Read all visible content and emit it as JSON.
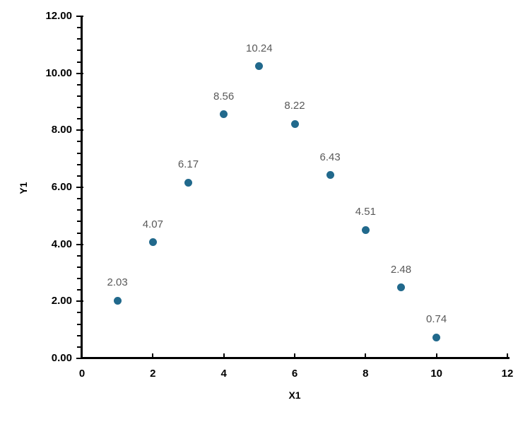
{
  "chart_data": {
    "type": "scatter",
    "title": "",
    "xlabel": "X1",
    "ylabel": "Y1",
    "xlim": [
      0,
      12
    ],
    "ylim": [
      0,
      12
    ],
    "grid": false,
    "legend": "none",
    "axis_color": "#000000",
    "data_label_color": "#595959",
    "y_minor_step": 0.4,
    "x_ticks": [
      {
        "value": 0,
        "label": "0"
      },
      {
        "value": 2,
        "label": "2"
      },
      {
        "value": 4,
        "label": "4"
      },
      {
        "value": 6,
        "label": "6"
      },
      {
        "value": 8,
        "label": "8"
      },
      {
        "value": 10,
        "label": "10"
      },
      {
        "value": 12,
        "label": "12"
      }
    ],
    "y_ticks": [
      {
        "value": 0,
        "label": "0.00"
      },
      {
        "value": 2,
        "label": "2.00"
      },
      {
        "value": 4,
        "label": "4.00"
      },
      {
        "value": 6,
        "label": "6.00"
      },
      {
        "value": 8,
        "label": "8.00"
      },
      {
        "value": 10,
        "label": "10.00"
      },
      {
        "value": 12,
        "label": "12.00"
      }
    ],
    "series": [
      {
        "name": "Y1",
        "marker_color": "#21698C",
        "points": [
          {
            "x": 1,
            "y": 2.03,
            "label": "2.03"
          },
          {
            "x": 2,
            "y": 4.07,
            "label": "4.07"
          },
          {
            "x": 3,
            "y": 6.17,
            "label": "6.17"
          },
          {
            "x": 4,
            "y": 8.56,
            "label": "8.56"
          },
          {
            "x": 5,
            "y": 10.24,
            "label": "10.24"
          },
          {
            "x": 6,
            "y": 8.22,
            "label": "8.22"
          },
          {
            "x": 7,
            "y": 6.43,
            "label": "6.43"
          },
          {
            "x": 8,
            "y": 4.51,
            "label": "4.51"
          },
          {
            "x": 9,
            "y": 2.48,
            "label": "2.48"
          },
          {
            "x": 10,
            "y": 0.74,
            "label": "0.74"
          }
        ]
      }
    ]
  }
}
